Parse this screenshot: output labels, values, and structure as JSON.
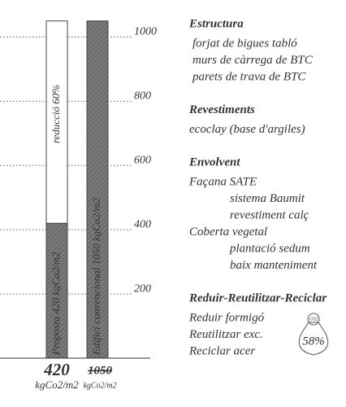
{
  "chart_data": {
    "type": "bar",
    "categories": [
      "Proposta 420 kgCo2/m2",
      "Edifici convencional 1050 kgCo2/m2"
    ],
    "values": [
      420,
      1050
    ],
    "value_labels": [
      "420",
      "1050"
    ],
    "unit": "kgCo2/m2",
    "reference_label": "reducció 60%",
    "color": "#7a7a7a",
    "ylim": [
      0,
      1100
    ],
    "yticks": [
      200,
      400,
      600,
      800,
      1000
    ],
    "grid": true
  },
  "sections": [
    {
      "heading": "Estructura",
      "items": [
        {
          "text": "forjat de bigues tabló"
        },
        {
          "text": "murs de càrrega de BTC"
        },
        {
          "text": "parets de trava de BTC"
        }
      ]
    },
    {
      "heading": "Revestiments",
      "items": [
        {
          "text": "ecoclay (base d'argiles)"
        }
      ]
    },
    {
      "heading": "Envolvent",
      "items": [
        {
          "text": "Façana SATE",
          "sub": [
            "sistema Baumit",
            "revestiment calç"
          ]
        },
        {
          "text": "Coberta vegetal",
          "sub": [
            "plantació sedum",
            "baix manteniment"
          ]
        }
      ]
    },
    {
      "heading": "Reduir-Reutilitzar-Reciclar",
      "items": [
        {
          "text": "Reduir formigó"
        },
        {
          "text": "Reutilitzar exc."
        },
        {
          "text": "Reciclar acer"
        }
      ]
    }
  ],
  "badge": {
    "label": "CO2",
    "value": "58%"
  }
}
